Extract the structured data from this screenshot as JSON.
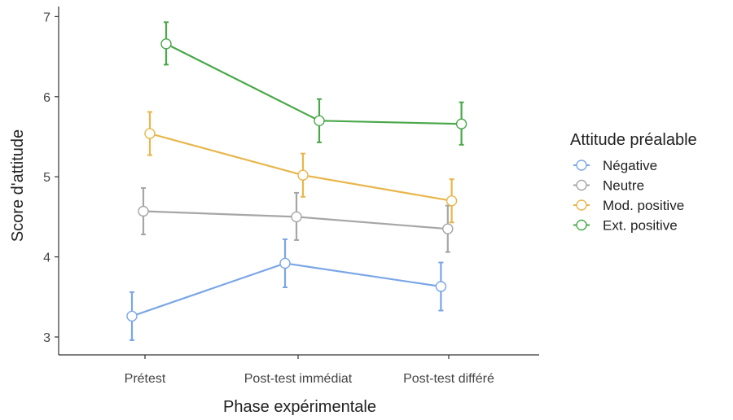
{
  "chart_data": {
    "type": "line",
    "xlabel": "Phase expérimentale",
    "ylabel": "Score d'attitude",
    "categories": [
      "Prétest",
      "Post-test immédiat",
      "Post-test différé"
    ],
    "ylim": [
      2.85,
      7.1
    ],
    "yticks": [
      3,
      4,
      5,
      6,
      7
    ],
    "grid": false,
    "legend": {
      "title": "Attitude préalable",
      "position": "right"
    },
    "series": [
      {
        "name": "Négative",
        "color": "#7aa6e6",
        "values": [
          3.26,
          3.92,
          3.63
        ],
        "lower": [
          2.96,
          3.62,
          3.33
        ],
        "upper": [
          3.56,
          4.22,
          3.93
        ]
      },
      {
        "name": "Neutre",
        "color": "#a6a6a6",
        "values": [
          4.57,
          4.5,
          4.35
        ],
        "lower": [
          4.28,
          4.21,
          4.06
        ],
        "upper": [
          4.86,
          4.8,
          4.64
        ]
      },
      {
        "name": "Mod. positive",
        "color": "#e8b64a",
        "values": [
          5.54,
          5.02,
          4.7
        ],
        "lower": [
          5.27,
          4.75,
          4.43
        ],
        "upper": [
          5.81,
          5.29,
          4.97
        ]
      },
      {
        "name": "Ext. positive",
        "color": "#4aa84a",
        "values": [
          6.66,
          5.7,
          5.66
        ],
        "lower": [
          6.4,
          5.43,
          5.4
        ],
        "upper": [
          6.93,
          5.97,
          5.93
        ]
      }
    ]
  }
}
